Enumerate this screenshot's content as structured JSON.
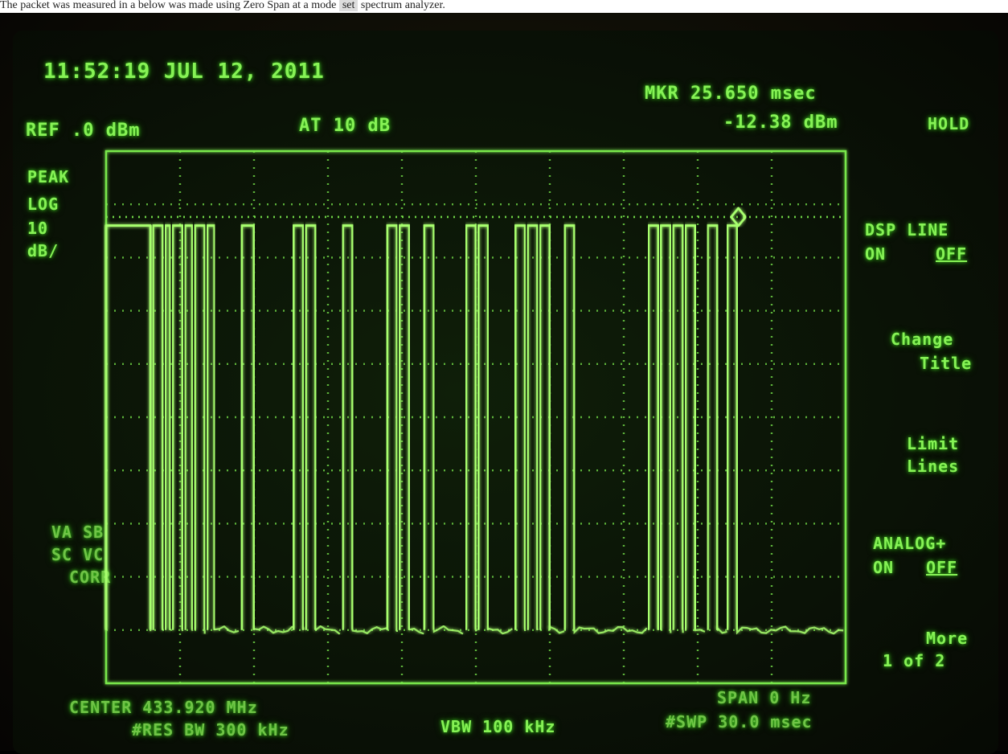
{
  "caption": {
    "text": "The packet was measured in a below was made using Zero Span at a mode",
    "highlight": "set",
    "tail": "spectrum analyzer."
  },
  "status": {
    "datetime": "11:52:19 JUL 12, 2011",
    "ref_level": "REF .0 dBm",
    "attenuation": "AT 10 dB",
    "marker_time": "MKR 25.650 msec",
    "marker_level": "-12.38 dBm"
  },
  "left_labels": {
    "detector": "PEAK",
    "scale": "LOG",
    "scale_value": "10",
    "scale_unit": "dB/",
    "corr_line1": "VA SB",
    "corr_line2": "SC VC",
    "corr_line3": "CORR"
  },
  "softkeys": {
    "hold": "HOLD",
    "dsp_line": "DSP LINE",
    "dsp_on": "ON",
    "dsp_off": "OFF",
    "change_title_1": "Change",
    "change_title_2": "Title",
    "limit_lines_1": "Limit",
    "limit_lines_2": "Lines",
    "analog_plus": "ANALOG+",
    "analog_on": "ON",
    "analog_off": "OFF",
    "more": "More",
    "more_page": "1 of 2"
  },
  "footer": {
    "center": "CENTER 433.920 MHz",
    "span": "SPAN 0 Hz",
    "res_bw": "#RES BW 300 kHz",
    "vbw": "VBW 100 kHz",
    "sweep": "#SWP 30.0 msec"
  },
  "colors": {
    "phosphor": "#86f255",
    "trace": "#a8ff6e",
    "graticule": "#79e84c"
  },
  "chart_data": {
    "type": "line",
    "title": "",
    "xlabel": "",
    "ylabel": "",
    "x_unit": "msec",
    "y_unit": "dBm",
    "xlim": [
      0,
      30.0
    ],
    "ylim": [
      -100,
      0
    ],
    "grid": true,
    "display_line": -12.38,
    "marker": {
      "x": 25.65,
      "y": -12.38
    },
    "high_level": -14,
    "noise_level": -90,
    "pulses": [
      [
        0.0,
        1.8
      ],
      [
        1.9,
        2.3
      ],
      [
        2.4,
        2.6
      ],
      [
        2.7,
        3.1
      ],
      [
        3.2,
        3.5
      ],
      [
        3.6,
        4.0
      ],
      [
        4.1,
        4.4
      ],
      [
        5.5,
        6.0
      ],
      [
        7.6,
        8.0
      ],
      [
        8.1,
        8.5
      ],
      [
        9.6,
        10.0
      ],
      [
        11.4,
        11.8
      ],
      [
        11.9,
        12.3
      ],
      [
        12.9,
        13.3
      ],
      [
        14.6,
        15.0
      ],
      [
        15.1,
        15.5
      ],
      [
        16.6,
        17.0
      ],
      [
        17.1,
        17.5
      ],
      [
        17.6,
        18.0
      ],
      [
        18.6,
        19.0
      ],
      [
        22.0,
        22.4
      ],
      [
        22.5,
        22.9
      ],
      [
        23.0,
        23.4
      ],
      [
        23.5,
        23.9
      ],
      [
        24.4,
        24.8
      ],
      [
        25.2,
        25.6
      ]
    ]
  }
}
